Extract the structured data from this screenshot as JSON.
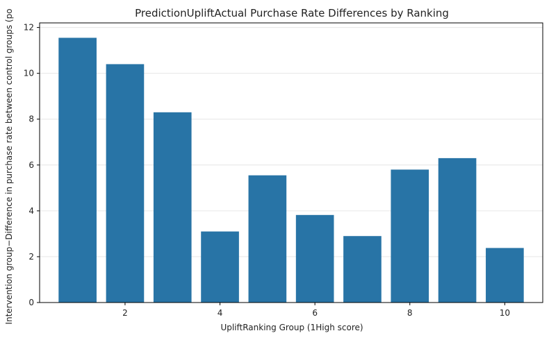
{
  "chart_data": {
    "type": "bar",
    "title": "PredictionUpliftActual Purchase Rate Differences by Ranking",
    "xlabel": "UpliftRanking Group (1High score)",
    "ylabel": "Intervention group−Difference in purchase rate between control groups (po",
    "categories": [
      1,
      2,
      3,
      4,
      5,
      6,
      7,
      8,
      9,
      10
    ],
    "values": [
      11.55,
      10.4,
      8.3,
      3.1,
      5.55,
      3.82,
      2.9,
      5.8,
      6.3,
      2.38
    ],
    "x_ticks": [
      "2",
      "4",
      "6",
      "8",
      "10"
    ],
    "y_ticks": [
      "0",
      "2",
      "4",
      "6",
      "8",
      "10",
      "12"
    ],
    "ylim": [
      0,
      12.2
    ],
    "grid": "horizontal",
    "bar_color": "#2874a6"
  }
}
